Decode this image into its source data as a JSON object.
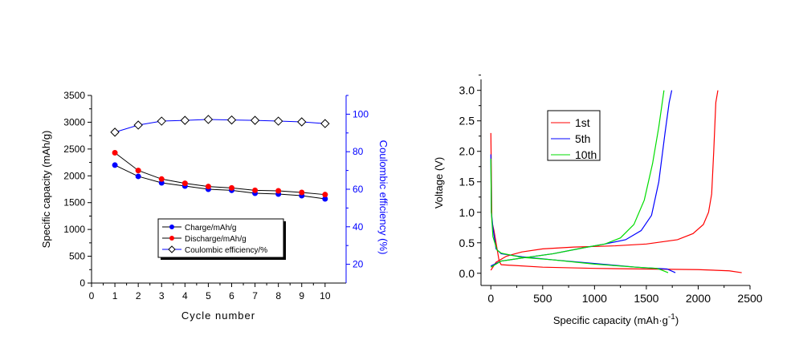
{
  "chart_data": [
    {
      "type": "line",
      "xlabel": "Cycle number",
      "ylabel": "Specific capacity (mAh/g)",
      "y2label": "Coulombic efficiency (%)",
      "xlim": [
        0,
        10.9
      ],
      "ylim": [
        0,
        3500
      ],
      "y2lim": [
        10,
        110
      ],
      "xticks": [
        0,
        1,
        2,
        3,
        4,
        5,
        6,
        7,
        8,
        9,
        10
      ],
      "yticks": [
        0,
        500,
        1000,
        1500,
        2000,
        2500,
        3000,
        3500
      ],
      "y2ticks": [
        20,
        40,
        60,
        80,
        100
      ],
      "x": [
        1,
        2,
        3,
        4,
        5,
        6,
        7,
        8,
        9,
        10
      ],
      "legend": "center-bottom",
      "series": [
        {
          "name": "Charge/mAh/g",
          "axis": "left",
          "color": "#0000ff",
          "line": "#000000",
          "marker": "circle",
          "values": [
            2200,
            1990,
            1870,
            1810,
            1750,
            1730,
            1675,
            1660,
            1630,
            1570
          ]
        },
        {
          "name": "Discharge/mAh/g",
          "axis": "left",
          "color": "#ff0000",
          "line": "#000000",
          "marker": "circle",
          "values": [
            2430,
            2100,
            1940,
            1860,
            1800,
            1775,
            1730,
            1720,
            1690,
            1650
          ]
        },
        {
          "name": "Coulombic efficiency/%",
          "axis": "right",
          "color": "#ffffff",
          "line": "#0000ff",
          "marker": "diamond",
          "values": [
            90.4,
            94.2,
            96.3,
            96.7,
            97.2,
            96.9,
            96.7,
            96.3,
            95.9,
            95.0
          ]
        }
      ]
    },
    {
      "type": "line",
      "xlabel": "Specific capacity (mAh·g",
      "xlabel_sup": "-1",
      "xlabel_end": ")",
      "ylabel": "Voltage (V)",
      "xlim": [
        -95,
        2500
      ],
      "ylim": [
        -0.2,
        3.18
      ],
      "xticks": [
        0,
        500,
        1000,
        1500,
        2000,
        2500
      ],
      "yticks": [
        0.0,
        0.5,
        1.0,
        1.5,
        2.0,
        2.5,
        3.0
      ],
      "legend": "top-left",
      "series": [
        {
          "name": "1st",
          "color": "#ff0000",
          "segments": [
            [
              [
                0,
                2.3
              ],
              [
                10,
                0.85
              ],
              [
                30,
                0.7
              ],
              [
                60,
                0.4
              ],
              [
                80,
                0.2
              ],
              [
                100,
                0.14
              ],
              [
                200,
                0.13
              ],
              [
                500,
                0.1
              ],
              [
                1000,
                0.08
              ],
              [
                1500,
                0.07
              ],
              [
                2000,
                0.06
              ],
              [
                2300,
                0.04
              ],
              [
                2420,
                0.01
              ]
            ],
            [
              [
                0,
                0.05
              ],
              [
                50,
                0.18
              ],
              [
                150,
                0.28
              ],
              [
                300,
                0.35
              ],
              [
                500,
                0.4
              ],
              [
                800,
                0.43
              ],
              [
                1200,
                0.45
              ],
              [
                1500,
                0.48
              ],
              [
                1800,
                0.55
              ],
              [
                1950,
                0.65
              ],
              [
                2050,
                0.8
              ],
              [
                2100,
                1.0
              ],
              [
                2130,
                1.3
              ],
              [
                2150,
                2.0
              ],
              [
                2170,
                2.8
              ],
              [
                2190,
                3.0
              ]
            ]
          ]
        },
        {
          "name": "5th",
          "color": "#0000ff",
          "segments": [
            [
              [
                0,
                1.95
              ],
              [
                5,
                1.0
              ],
              [
                20,
                0.75
              ],
              [
                50,
                0.4
              ],
              [
                100,
                0.32
              ],
              [
                300,
                0.27
              ],
              [
                600,
                0.22
              ],
              [
                1000,
                0.16
              ],
              [
                1400,
                0.1
              ],
              [
                1700,
                0.07
              ],
              [
                1780,
                0.01
              ]
            ],
            [
              [
                0,
                0.12
              ],
              [
                100,
                0.2
              ],
              [
                300,
                0.25
              ],
              [
                600,
                0.32
              ],
              [
                900,
                0.42
              ],
              [
                1100,
                0.48
              ],
              [
                1300,
                0.55
              ],
              [
                1450,
                0.7
              ],
              [
                1550,
                0.95
              ],
              [
                1620,
                1.5
              ],
              [
                1680,
                2.3
              ],
              [
                1720,
                2.8
              ],
              [
                1745,
                3.0
              ]
            ]
          ]
        },
        {
          "name": "10th",
          "color": "#00dd00",
          "segments": [
            [
              [
                0,
                1.88
              ],
              [
                5,
                1.0
              ],
              [
                20,
                0.6
              ],
              [
                60,
                0.38
              ],
              [
                100,
                0.33
              ],
              [
                300,
                0.26
              ],
              [
                600,
                0.22
              ],
              [
                1000,
                0.15
              ],
              [
                1400,
                0.1
              ],
              [
                1600,
                0.08
              ],
              [
                1650,
                0.05
              ],
              [
                1710,
                0.01
              ]
            ],
            [
              [
                0,
                0.1
              ],
              [
                100,
                0.2
              ],
              [
                300,
                0.25
              ],
              [
                600,
                0.32
              ],
              [
                900,
                0.42
              ],
              [
                1100,
                0.48
              ],
              [
                1250,
                0.58
              ],
              [
                1380,
                0.8
              ],
              [
                1480,
                1.2
              ],
              [
                1560,
                1.8
              ],
              [
                1620,
                2.4
              ],
              [
                1670,
                3.0
              ]
            ]
          ]
        }
      ]
    }
  ]
}
